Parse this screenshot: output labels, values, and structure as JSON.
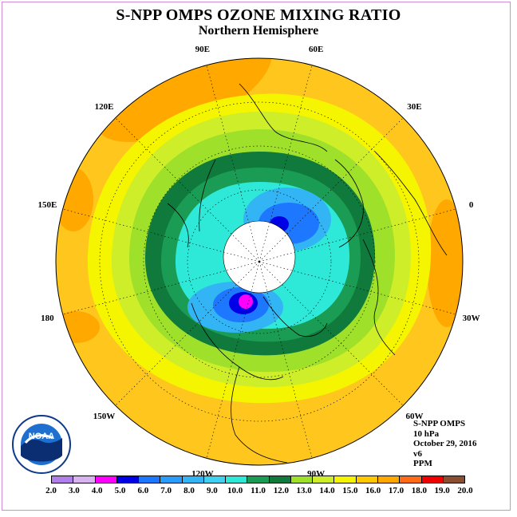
{
  "title": "S-NPP OMPS OZONE MIXING RATIO",
  "subtitle": "Northern Hemisphere",
  "longitude_labels": [
    {
      "text": "90E",
      "angle": 90
    },
    {
      "text": "60E",
      "angle": 60
    },
    {
      "text": "30E",
      "angle": 30
    },
    {
      "text": "0",
      "angle": 0
    },
    {
      "text": "30W",
      "angle": -30
    },
    {
      "text": "60W",
      "angle": -60
    },
    {
      "text": "90W",
      "angle": -90
    },
    {
      "text": "120W",
      "angle": -120
    },
    {
      "text": "150W",
      "angle": -150
    },
    {
      "text": "180",
      "angle": 180
    },
    {
      "text": "150E",
      "angle": 150
    },
    {
      "text": "120E",
      "angle": 120
    }
  ],
  "info": {
    "instrument": "S-NPP OMPS",
    "level": "10 hPa",
    "date": "October 29, 2016",
    "version": "v6",
    "units": "PPM"
  },
  "logo": {
    "text": "NOAA",
    "name": "noaa-logo"
  },
  "colorbar": {
    "ticks": [
      "2.0",
      "3.0",
      "4.0",
      "5.0",
      "6.0",
      "7.0",
      "8.0",
      "9.0",
      "10.0",
      "11.0",
      "12.0",
      "13.0",
      "14.0",
      "15.0",
      "16.0",
      "17.0",
      "18.0",
      "19.0",
      "20.0"
    ],
    "colors": [
      "#b07fe8",
      "#d9b3f0",
      "#ff00ff",
      "#0000e6",
      "#1e78ff",
      "#2a9dfa",
      "#33b5f5",
      "#40d0f0",
      "#2ee8d8",
      "#1a9c55",
      "#0f7a3c",
      "#9ee02a",
      "#cfee2a",
      "#f5f500",
      "#ffc800",
      "#ffa800",
      "#ff6a18",
      "#f00000",
      "#8a4e30"
    ]
  },
  "map": {
    "background": "#ffc61e",
    "polar_night_color": "#ffffff"
  }
}
